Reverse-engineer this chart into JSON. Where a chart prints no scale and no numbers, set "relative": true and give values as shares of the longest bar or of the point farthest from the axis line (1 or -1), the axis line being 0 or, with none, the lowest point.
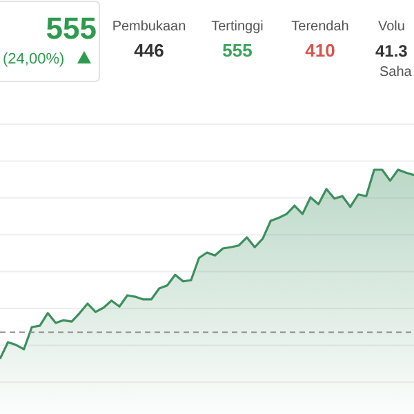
{
  "chart_data": {
    "type": "area",
    "relative": true,
    "grid": true,
    "categories": [
      null,
      null,
      null,
      null,
      null,
      null,
      null,
      null,
      null,
      null,
      null,
      null,
      null,
      null,
      null,
      null,
      null,
      null,
      null,
      null,
      null,
      null,
      null,
      null,
      null,
      null,
      null,
      null,
      null,
      null,
      null,
      null,
      null,
      null,
      null,
      null,
      null,
      null,
      null,
      null,
      null,
      null,
      null,
      null,
      null,
      null,
      null,
      null,
      null,
      null,
      null,
      null,
      null
    ],
    "series": [
      {
        "color": "#3d8f5e",
        "values": [
          0.226,
          0.294,
          0.283,
          0.265,
          0.356,
          0.361,
          0.413,
          0.373,
          0.384,
          0.378,
          0.413,
          0.452,
          0.418,
          0.435,
          0.464,
          0.44,
          0.486,
          0.48,
          0.469,
          0.469,
          0.514,
          0.526,
          0.57,
          0.543,
          0.548,
          0.639,
          0.661,
          0.649,
          0.678,
          0.683,
          0.69,
          0.723,
          0.683,
          0.718,
          0.791,
          0.803,
          0.819,
          0.853,
          0.819,
          0.887,
          0.859,
          0.921,
          0.882,
          0.892,
          0.848,
          0.899,
          0.892,
          1,
          1,
          0.955,
          1,
          0.988,
          0.978
        ]
      }
    ],
    "ref_lines": [
      {
        "axis": "y",
        "value": 0.335,
        "color": "#8a8a8a",
        "line_style": "dashed"
      }
    ],
    "annotations": [
      "555",
      "(24,00%)",
      "Pembukaan",
      "446",
      "Tertinggi",
      "555",
      "Terendah",
      "410",
      "Volu",
      "41.3",
      "Saha"
    ]
  }
}
